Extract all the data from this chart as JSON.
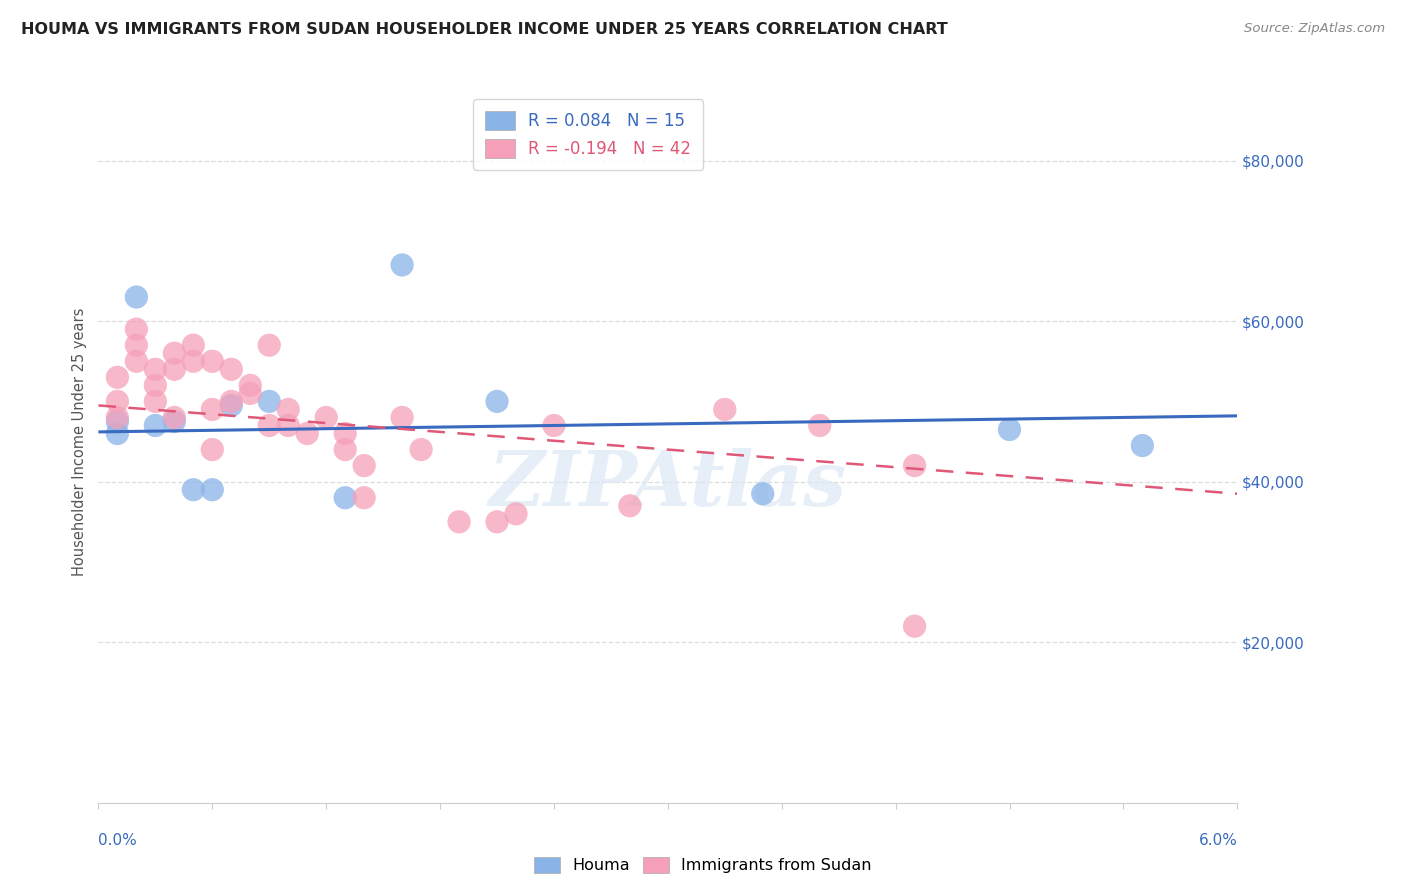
{
  "title": "HOUMA VS IMMIGRANTS FROM SUDAN HOUSEHOLDER INCOME UNDER 25 YEARS CORRELATION CHART",
  "source": "Source: ZipAtlas.com",
  "ylabel": "Householder Income Under 25 years",
  "legend_label1": "Houma",
  "legend_label2": "Immigrants from Sudan",
  "r1": 0.084,
  "n1": 15,
  "r2": -0.194,
  "n2": 42,
  "houma_line_color": "#3a6abf",
  "sudan_line_color": "#e05878",
  "watermark": "ZIPAtlas",
  "ytick_labels": [
    "$20,000",
    "$40,000",
    "$60,000",
    "$80,000"
  ],
  "ytick_values": [
    20000,
    40000,
    60000,
    80000
  ],
  "xmin": 0.0,
  "xmax": 0.06,
  "ymin": 0,
  "ymax": 90000,
  "houma_x": [
    0.001,
    0.001,
    0.002,
    0.003,
    0.004,
    0.005,
    0.006,
    0.007,
    0.009,
    0.013,
    0.016,
    0.021,
    0.035,
    0.048,
    0.055
  ],
  "houma_y": [
    47500,
    46000,
    63000,
    47000,
    47500,
    39000,
    39000,
    49500,
    50000,
    38000,
    67000,
    50000,
    38500,
    46500,
    44500
  ],
  "sudan_x": [
    0.001,
    0.001,
    0.001,
    0.002,
    0.002,
    0.002,
    0.003,
    0.003,
    0.003,
    0.004,
    0.004,
    0.004,
    0.005,
    0.005,
    0.006,
    0.006,
    0.006,
    0.007,
    0.007,
    0.008,
    0.008,
    0.009,
    0.009,
    0.01,
    0.01,
    0.011,
    0.012,
    0.013,
    0.013,
    0.014,
    0.014,
    0.016,
    0.017,
    0.019,
    0.021,
    0.022,
    0.024,
    0.028,
    0.033,
    0.038,
    0.043,
    0.043
  ],
  "sudan_y": [
    53000,
    50000,
    48000,
    59000,
    57000,
    55000,
    52000,
    54000,
    50000,
    56000,
    54000,
    48000,
    57000,
    55000,
    55000,
    49000,
    44000,
    54000,
    50000,
    52000,
    51000,
    57000,
    47000,
    49000,
    47000,
    46000,
    48000,
    46000,
    44000,
    42000,
    38000,
    48000,
    44000,
    35000,
    35000,
    36000,
    47000,
    37000,
    49000,
    47000,
    42000,
    22000
  ],
  "houma_dot_color": "#8ab4e8",
  "sudan_dot_color": "#f5a0b8",
  "title_color": "#222222",
  "right_axis_color": "#3a6abf",
  "grid_color": "#dddddd",
  "background_color": "#ffffff"
}
